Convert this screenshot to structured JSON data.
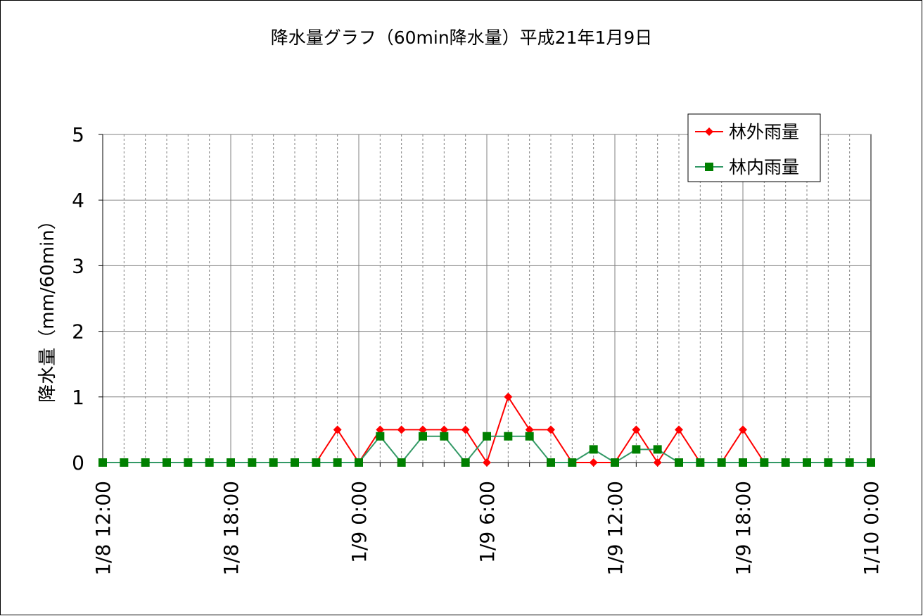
{
  "chart_data": {
    "type": "line",
    "title": "降水量グラフ（60min降水量）平成21年1月9日",
    "ylabel": "降水量（mm/60min）",
    "xlabel": "",
    "ylim": [
      0,
      5
    ],
    "yticks": [
      0,
      1,
      2,
      3,
      4,
      5
    ],
    "x_tick_labels": [
      "1/8 12:00",
      "1/8 18:00",
      "1/9 0:00",
      "1/9 6:00",
      "1/9 12:00",
      "1/9 18:00",
      "1/10 0:00"
    ],
    "x_start": "1/8 12:00",
    "x_step_hours": 1,
    "grid": true,
    "legend_position": "top-right",
    "series": [
      {
        "name": "林外雨量",
        "color": "#ff0000",
        "marker": "diamond",
        "values": [
          0,
          0,
          0,
          0,
          0,
          0,
          0,
          0,
          0,
          0,
          0,
          0.5,
          0,
          0.5,
          0.5,
          0.5,
          0.5,
          0.5,
          0,
          1,
          0.5,
          0.5,
          0,
          0,
          0,
          0.5,
          0,
          0.5,
          0,
          0,
          0.5,
          0,
          0,
          0,
          0,
          0,
          0
        ]
      },
      {
        "name": "林内雨量",
        "color": "#008000",
        "line_color": "#339966",
        "marker": "square",
        "values": [
          0,
          0,
          0,
          0,
          0,
          0,
          0,
          0,
          0,
          0,
          0,
          0,
          0,
          0.4,
          0,
          0.4,
          0.4,
          0,
          0.4,
          0.4,
          0.4,
          0,
          0,
          0.2,
          0,
          0.2,
          0.2,
          0,
          0,
          0,
          0,
          0,
          0,
          0,
          0,
          0,
          0
        ]
      }
    ]
  }
}
